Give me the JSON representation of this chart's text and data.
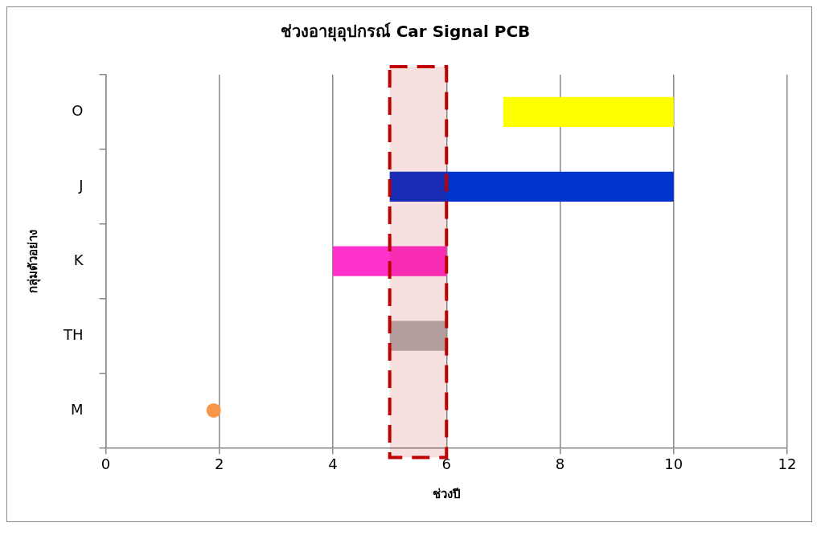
{
  "chart_data": {
    "type": "bar",
    "orientation": "horizontal",
    "title": "ช่วงอายุอุปกรณ์ Car Signal PCB",
    "xlabel": "ช่วงปี",
    "ylabel": "กลุ่มตัวอย่าง",
    "categories": [
      "O",
      "J",
      "K",
      "TH",
      "M"
    ],
    "series": [
      {
        "values": [
          3,
          5,
          2,
          1,
          null
        ],
        "base": [
          7,
          5,
          4,
          5,
          null
        ],
        "colors": [
          "#ffff00",
          "#0033cc",
          "#ff33cc",
          "#b3b3b3",
          null
        ]
      },
      {
        "type": "scatter",
        "values": [
          null,
          null,
          null,
          null,
          1.9
        ],
        "color": "#f79646",
        "marker": "circle"
      }
    ],
    "xlim": [
      0,
      12
    ],
    "xticks": [
      0,
      2,
      4,
      6,
      8,
      10,
      12
    ],
    "grid": "x",
    "legend": false,
    "bands": [
      {
        "axis": "x",
        "from": 5,
        "to": 6,
        "color": "#c00000"
      }
    ]
  }
}
